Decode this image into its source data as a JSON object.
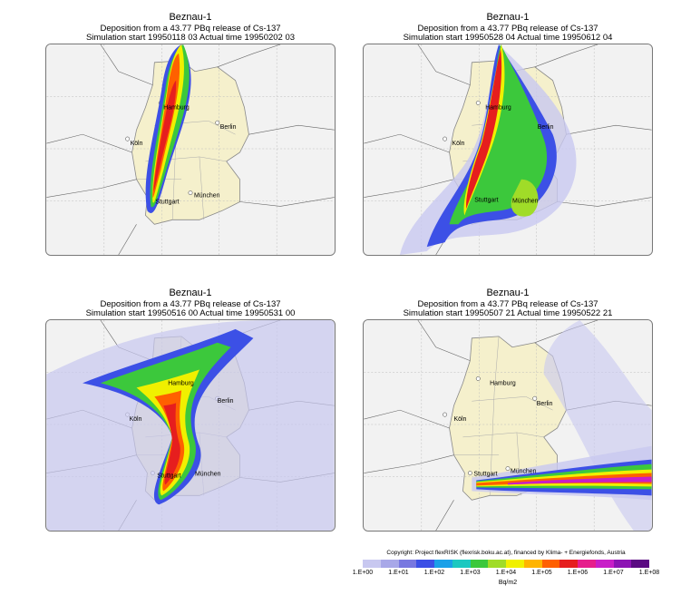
{
  "panels": [
    {
      "title": "Beznau-1",
      "subtitle": "Deposition from a   43.77 PBq release of Cs-137",
      "timing": "Simulation start 19950118 03    Actual time  19950202 03"
    },
    {
      "title": "Beznau-1",
      "subtitle": "Deposition from a   43.77 PBq release of Cs-137",
      "timing": "Simulation start 19950528 04    Actual time  19950612 04"
    },
    {
      "title": "Beznau-1",
      "subtitle": "Deposition from a   43.77 PBq release of Cs-137",
      "timing": "Simulation start 19950516 00    Actual time  19950531 00"
    },
    {
      "title": "Beznau-1",
      "subtitle": "Deposition from a   43.77 PBq release of Cs-137",
      "timing": "Simulation start 19950507 21    Actual time  19950522 21"
    }
  ],
  "cities": {
    "hamburg": "Hamburg",
    "berlin": "Berlin",
    "koeln": "Köln",
    "stuttgart": "Stuttgart",
    "muenchen": "München"
  },
  "legend": {
    "copyright": "Copyright: Project flexRISK (flexrisk.boku.ac.at), financed by Klima- + Energiefonds, Austria",
    "unit": "Bq/m2",
    "ticks": [
      "1.E+00",
      "1.E+01",
      "1.E+02",
      "1.E+03",
      "1.E+04",
      "1.E+05",
      "1.E+06",
      "1.E+07",
      "1.E+08"
    ],
    "colors": [
      "#c8c8f0",
      "#a8a8e8",
      "#7878e0",
      "#3c50e6",
      "#1aa0e8",
      "#1cc8c0",
      "#3cc83c",
      "#a0dc28",
      "#f0f000",
      "#ffb400",
      "#ff6000",
      "#e61e1e",
      "#e61e8c",
      "#c81ec8",
      "#8c14b4",
      "#5a0a82"
    ]
  }
}
